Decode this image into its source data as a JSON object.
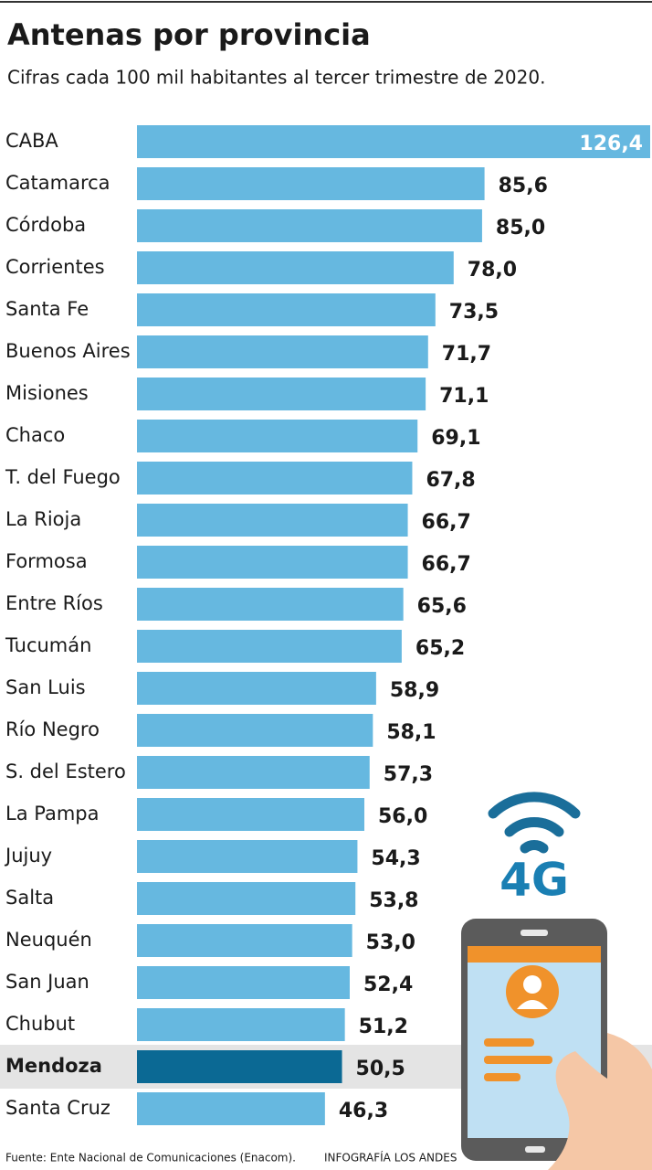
{
  "chart_data": {
    "type": "hbar",
    "title": "Antenas por provincia",
    "subtitle": "Cifras cada 100 mil habitantes al tercer trimestre de 2020.",
    "categories": [
      "CABA",
      "Catamarca",
      "Córdoba",
      "Corrientes",
      "Santa Fe",
      "Buenos Aires",
      "Misiones",
      "Chaco",
      "T. del Fuego",
      "La Rioja",
      "Formosa",
      "Entre Ríos",
      "Tucumán",
      "San Luis",
      "Río Negro",
      "S. del Estero",
      "La Pampa",
      "Jujuy",
      "Salta",
      "Neuquén",
      "San Juan",
      "Chubut",
      "Mendoza",
      "Santa Cruz"
    ],
    "values": [
      126.4,
      85.6,
      85.0,
      78.0,
      73.5,
      71.7,
      71.1,
      69.1,
      67.8,
      66.7,
      66.7,
      65.6,
      65.2,
      58.9,
      58.1,
      57.3,
      56.0,
      54.3,
      53.8,
      53.0,
      52.4,
      51.2,
      50.5,
      46.3
    ],
    "value_labels": [
      "126,4",
      "85,6",
      "85,0",
      "78,0",
      "73,5",
      "71,7",
      "71,1",
      "69,1",
      "67,8",
      "66,7",
      "66,7",
      "65,6",
      "65,2",
      "58,9",
      "58,1",
      "57,3",
      "56,0",
      "54,3",
      "53,8",
      "53,0",
      "52,4",
      "51,2",
      "50,5",
      "46,3"
    ],
    "color": "#66b8e0",
    "highlight_index": 22,
    "highlight_color": "#0b6994",
    "icon_text": "4G",
    "source": "Fuente: Ente Nacional de Comunicaciones (Enacom).",
    "credit": "INFOGRAFÍA LOS ANDES"
  }
}
